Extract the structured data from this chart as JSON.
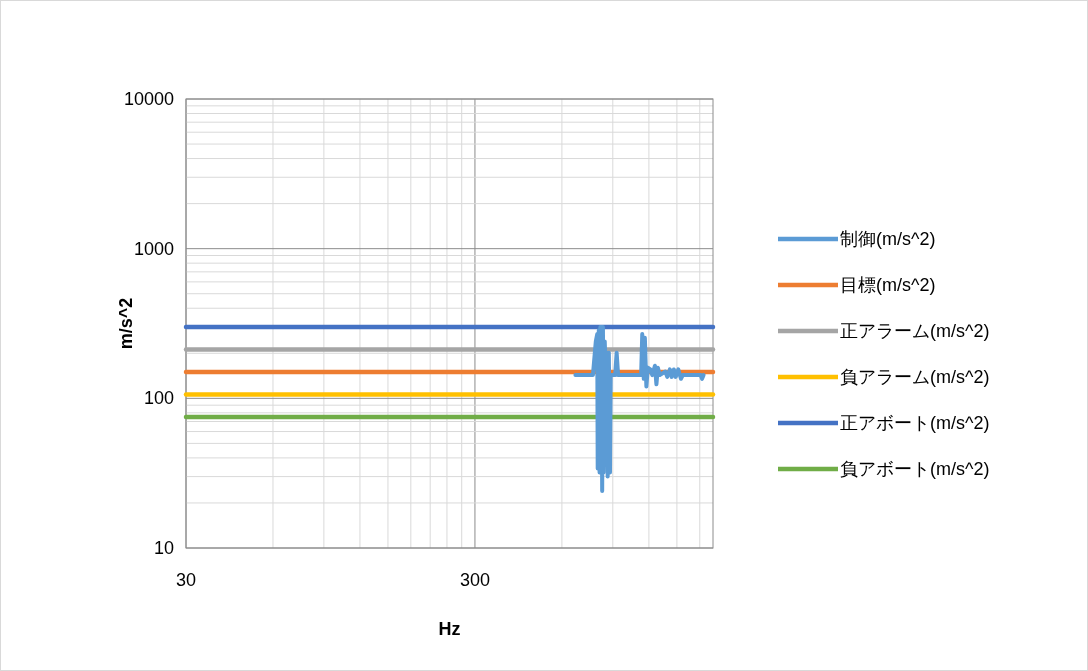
{
  "chart_data": {
    "type": "line",
    "xlabel": "Hz",
    "ylabel": "m/s^2",
    "log": "xy",
    "xlim": [
      30,
      2000
    ],
    "xticks": [
      30,
      300
    ],
    "ylim": [
      10,
      10000
    ],
    "yticks": [
      10,
      100,
      1000,
      10000
    ],
    "grid": true,
    "legend": "right",
    "marker": "none",
    "line_style": "solid",
    "series": [
      {
        "name": "制御(m/s^2)",
        "color": "#5b9bd5",
        "x": [
          668,
          682,
          768,
          786,
          795,
          798,
          805,
          810,
          815,
          822,
          827,
          832,
          836,
          844,
          851,
          859,
          864,
          872,
          880,
          885,
          917,
          928,
          939,
          1128,
          1138,
          1152,
          1162,
          1176,
          1190,
          1215,
          1233,
          1259,
          1274,
          1289,
          1308,
          1368,
          1389,
          1418,
          1439,
          1464,
          1486,
          1517,
          1549,
          1572,
          1734,
          1812,
          1833,
          1856
        ],
        "values": [
          143,
          143,
          143,
          240,
          269,
          34,
          285,
          32,
          300,
          300,
          24,
          300,
          32,
          240,
          143,
          202,
          30,
          202,
          32,
          143,
          143,
          202,
          143,
          143,
          269,
          135,
          254,
          120,
          160,
          156,
          143,
          165,
          124,
          160,
          143,
          151,
          139,
          156,
          139,
          156,
          139,
          156,
          135,
          143,
          143,
          143,
          135,
          143
        ]
      },
      {
        "name": "目標(m/s^2)",
        "color": "#ed7d31",
        "x": [
          30,
          2000
        ],
        "values": [
          150,
          150
        ]
      },
      {
        "name": "正アラーム(m/s^2)",
        "color": "#a5a5a5",
        "x": [
          30,
          2000
        ],
        "values": [
          212,
          212
        ]
      },
      {
        "name": "負アラーム(m/s^2)",
        "color": "#ffc000",
        "x": [
          30,
          2000
        ],
        "values": [
          106,
          106
        ]
      },
      {
        "name": "正アボート(m/s^2)",
        "color": "#4472c4",
        "x": [
          30,
          2000
        ],
        "values": [
          300,
          300
        ]
      },
      {
        "name": "負アボート(m/s^2)",
        "color": "#70ad47",
        "x": [
          30,
          2000
        ],
        "values": [
          75,
          75
        ]
      }
    ]
  }
}
